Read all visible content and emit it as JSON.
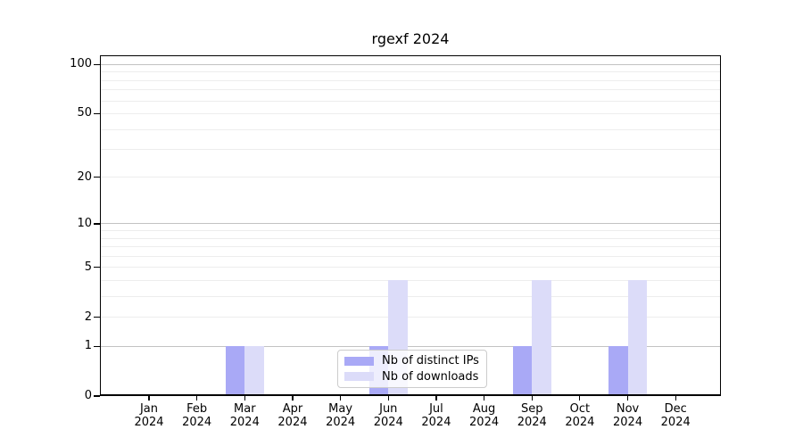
{
  "chart_data": {
    "type": "bar",
    "title": "rgexf 2024",
    "categories": [
      "Jan",
      "Feb",
      "Mar",
      "Apr",
      "May",
      "Jun",
      "Jul",
      "Aug",
      "Sep",
      "Oct",
      "Nov",
      "Dec"
    ],
    "year_label": "2024",
    "series": [
      {
        "name": "Nb of distinct IPs",
        "color": "#a9a9f6",
        "values": [
          0,
          0,
          1,
          0,
          0,
          1,
          0,
          0,
          1,
          0,
          1,
          0
        ]
      },
      {
        "name": "Nb of downloads",
        "color": "#dcdcf9",
        "values": [
          0,
          0,
          1,
          0,
          0,
          4,
          0,
          0,
          4,
          0,
          4,
          0
        ]
      }
    ],
    "yscale": "log10(1+x)",
    "ylim": [
      0,
      114
    ],
    "yticks": [
      0,
      1,
      2,
      5,
      10,
      20,
      50,
      100
    ],
    "gridlines": {
      "emphasized": [
        1,
        10,
        100
      ],
      "minor": [
        3,
        4,
        6,
        7,
        8,
        9,
        30,
        40,
        60,
        70,
        80,
        90
      ]
    },
    "grid": true,
    "legend_position": "lower center"
  },
  "colors": {
    "distinct_ips_bar": "#a9a9f6",
    "downloads_bar": "#dcdcf9",
    "major_grid": "#c2c2c2",
    "minor_grid": "#ededed"
  }
}
